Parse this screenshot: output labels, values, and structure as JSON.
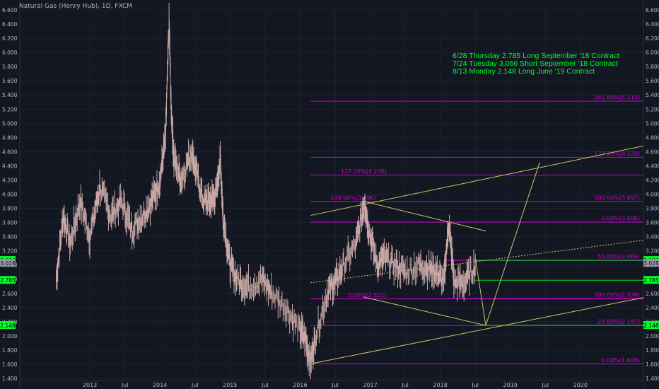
{
  "chart_data": {
    "type": "line",
    "title": "Natural Gas (Henry Hub), 1D, FXCM",
    "notes": [
      "6/28 Thursday 2.785 Long September '18 Contract",
      "7/24 Tuesday 3.066 Short September '18 Contract",
      "8/13 Monday 2.148 Long June '19 Contract"
    ],
    "ylim": [
      1.4,
      6.6
    ],
    "xlim": [
      2012.0,
      2020.9
    ],
    "y_ticks": [
      "1.400",
      "1.600",
      "1.800",
      "2.000",
      "2.200",
      "2.400",
      "2.600",
      "2.800",
      "3.000",
      "3.200",
      "3.400",
      "3.600",
      "3.800",
      "4.000",
      "4.200",
      "4.400",
      "4.600",
      "4.800",
      "5.000",
      "5.200",
      "5.400",
      "5.600",
      "5.800",
      "6.000",
      "6.200",
      "6.400",
      "6.600"
    ],
    "x_ticks": [
      "2013",
      "Jul",
      "2014",
      "Jul",
      "2015",
      "Jul",
      "2016",
      "Jul",
      "2017",
      "Jul",
      "2018",
      "Jul",
      "2019",
      "Jul",
      "2020"
    ],
    "price_labels": [
      {
        "value": 3.066,
        "text": "3.066"
      },
      {
        "value": 3.028,
        "text": "3.028"
      },
      {
        "value": 2.785,
        "text": "2.785"
      },
      {
        "value": 2.148,
        "text": "2.148"
      }
    ],
    "series": [
      {
        "x": [
          2012.52,
          2012.62,
          2012.72,
          2012.86,
          2013.0,
          2013.14,
          2013.3,
          2013.45,
          2013.6,
          2013.75,
          2013.88,
          2014.0,
          2014.08,
          2014.13,
          2014.16,
          2014.2,
          2014.3,
          2014.45,
          2014.52,
          2014.62,
          2014.72,
          2014.8,
          2014.86,
          2014.9,
          2015.0,
          2015.1,
          2015.25,
          2015.45,
          2015.6,
          2015.8,
          2015.98,
          2016.08,
          2016.15,
          2016.22,
          2016.4,
          2016.5,
          2016.62,
          2016.8,
          2016.92,
          2016.98,
          2017.1,
          2017.2,
          2017.35,
          2017.5,
          2017.7,
          2017.85,
          2017.95,
          2018.05,
          2018.12,
          2018.2,
          2018.35,
          2018.5
        ],
        "y": [
          2.8,
          3.7,
          3.3,
          3.9,
          3.4,
          4.1,
          3.7,
          3.9,
          3.5,
          3.7,
          3.9,
          4.2,
          4.8,
          6.45,
          5.2,
          4.5,
          4.2,
          4.6,
          4.3,
          3.9,
          3.9,
          4.0,
          4.5,
          3.7,
          3.0,
          2.8,
          2.7,
          2.8,
          2.6,
          2.4,
          2.1,
          1.95,
          1.64,
          2.0,
          2.65,
          2.75,
          3.0,
          3.3,
          3.9,
          3.5,
          3.0,
          3.1,
          3.0,
          2.9,
          3.0,
          2.95,
          2.9,
          2.75,
          3.6,
          2.75,
          2.75,
          3.0
        ]
      }
    ],
    "fib_levels": [
      {
        "label": "161.80%(5.313)",
        "value": 5.313,
        "x0": 2016.15,
        "x1": 2020.9,
        "color": "#ce00d2"
      },
      {
        "label": "127.20%(4.520)",
        "value": 4.52,
        "x0": 2016.15,
        "x1": 2020.9,
        "color": "#ce00d2"
      },
      {
        "label": "127.20%(4.270)",
        "value": 4.27,
        "x0": 2016.15,
        "x1": 2020.9,
        "color": "#ce00d2"
      },
      {
        "label": "100.00%(3.897)",
        "value": 3.897,
        "x0": 2016.15,
        "x1": 2020.9,
        "color": "#ce00d2"
      },
      {
        "label": "100.00%(3.896)",
        "value": 3.896,
        "x0": 2016.15,
        "x1": 2017.0,
        "color": "#ce00d2"
      },
      {
        "label": "0.00%(3.606)",
        "value": 3.606,
        "x0": 2016.15,
        "x1": 2020.9,
        "color": "#ce00d2"
      },
      {
        "label": "50.00%(3.066)",
        "value": 3.066,
        "x0": 2018.05,
        "x1": 2020.9,
        "color": "#ce00d2"
      },
      {
        "label": "0.00%(2.521)",
        "value": 2.521,
        "x0": 2016.15,
        "x1": 2020.9,
        "color": "#ce00d2"
      },
      {
        "label": "100.00%(2.526)",
        "value": 2.526,
        "x0": 2018.05,
        "x1": 2020.9,
        "color": "#ce00d2"
      },
      {
        "label": "23.60%(2.147)",
        "value": 2.147,
        "x0": 2016.15,
        "x1": 2020.9,
        "color": "#ce00d2"
      },
      {
        "label": "0.00%(1.606)",
        "value": 1.606,
        "x0": 2016.15,
        "x1": 2020.9,
        "color": "#ce00d2"
      }
    ],
    "green_levels": [
      3.066,
      2.785,
      2.148
    ],
    "trendlines": [
      {
        "x0": 2016.15,
        "y0": 3.7,
        "x1": 2020.9,
        "y1": 4.68
      },
      {
        "x0": 2016.15,
        "y0": 1.606,
        "x1": 2020.9,
        "y1": 2.54
      },
      {
        "x0": 2016.9,
        "y0": 3.9,
        "x1": 2018.65,
        "y1": 3.48
      },
      {
        "x0": 2016.9,
        "y0": 2.55,
        "x1": 2018.65,
        "y1": 2.148
      },
      {
        "x0": 2018.65,
        "y0": 2.148,
        "x1": 2019.42,
        "y1": 4.45
      },
      {
        "x0": 2018.5,
        "y0": 3.1,
        "x1": 2018.65,
        "y1": 2.148
      }
    ],
    "colors": {
      "background": "#131722",
      "price": "#c9a9a6",
      "fib": "#ce00d2",
      "trend": "#c8c864",
      "green": "#00ff26",
      "axis": "#b2b5be",
      "grid": "#1e2230"
    }
  }
}
